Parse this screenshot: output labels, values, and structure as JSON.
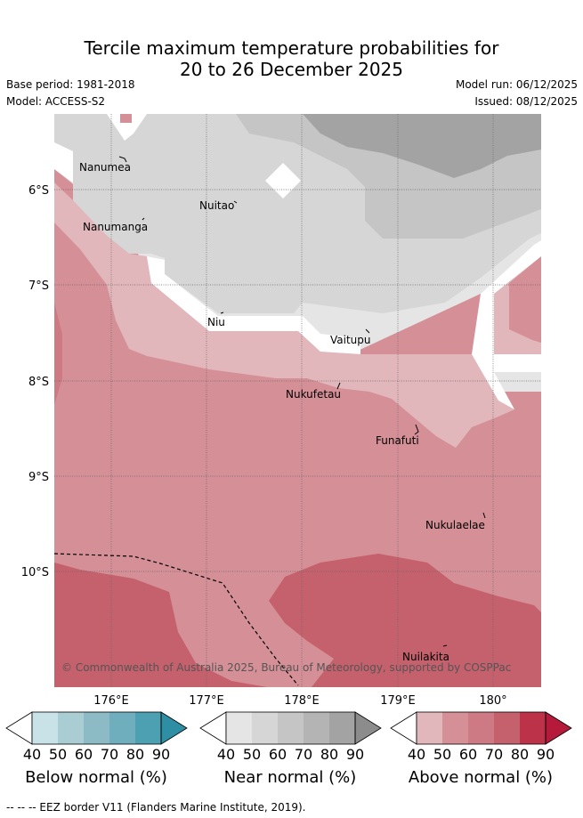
{
  "title_line1": "Tercile maximum temperature probabilities for",
  "title_line2": "20 to 26 December 2025",
  "base_period": "Base period: 1981-2018",
  "model": "Model: ACCESS-S2",
  "model_run": "Model run: 06/12/2025",
  "issued": "Issued: 08/12/2025",
  "map": {
    "lat_labels": [
      "6°S",
      "7°S",
      "8°S",
      "9°S",
      "10°S"
    ],
    "lon_labels": [
      "176°E",
      "177°E",
      "178°E",
      "179°E",
      "180°"
    ],
    "places": [
      "Nanumea",
      "Nuitao",
      "Nanumanga",
      "Niu",
      "Vaitupu",
      "Nukufetau",
      "Funafuti",
      "Nukulaelae",
      "Nuilakita"
    ],
    "credit": "© Commonwealth of Australia 2025, Bureau of Meteorology, supported by COSPPac"
  },
  "colorbars": [
    {
      "label": "Below normal (%)",
      "ticks": [
        "40",
        "50",
        "60",
        "70",
        "80",
        "90"
      ],
      "colors": [
        "#ffffff",
        "#c9e2e8",
        "#a9cdd2",
        "#8cbbc6",
        "#6fafbd",
        "#4ca0b1",
        "#2e8ea3"
      ]
    },
    {
      "label": "Near normal (%)",
      "ticks": [
        "40",
        "50",
        "60",
        "70",
        "80",
        "90"
      ],
      "colors": [
        "#ffffff",
        "#e5e5e5",
        "#d6d6d6",
        "#c5c5c5",
        "#b4b4b4",
        "#a3a3a3",
        "#8c8c8c"
      ]
    },
    {
      "label": "Above normal (%)",
      "ticks": [
        "40",
        "50",
        "60",
        "70",
        "80",
        "90"
      ],
      "colors": [
        "#ffffff",
        "#e1b7bc",
        "#d58f97",
        "#cd7a84",
        "#c5606d",
        "#bc3349",
        "#b51a3b"
      ]
    }
  ],
  "footer": "-- -- -- EEZ border V11 (Flanders Marine Institute, 2019)."
}
